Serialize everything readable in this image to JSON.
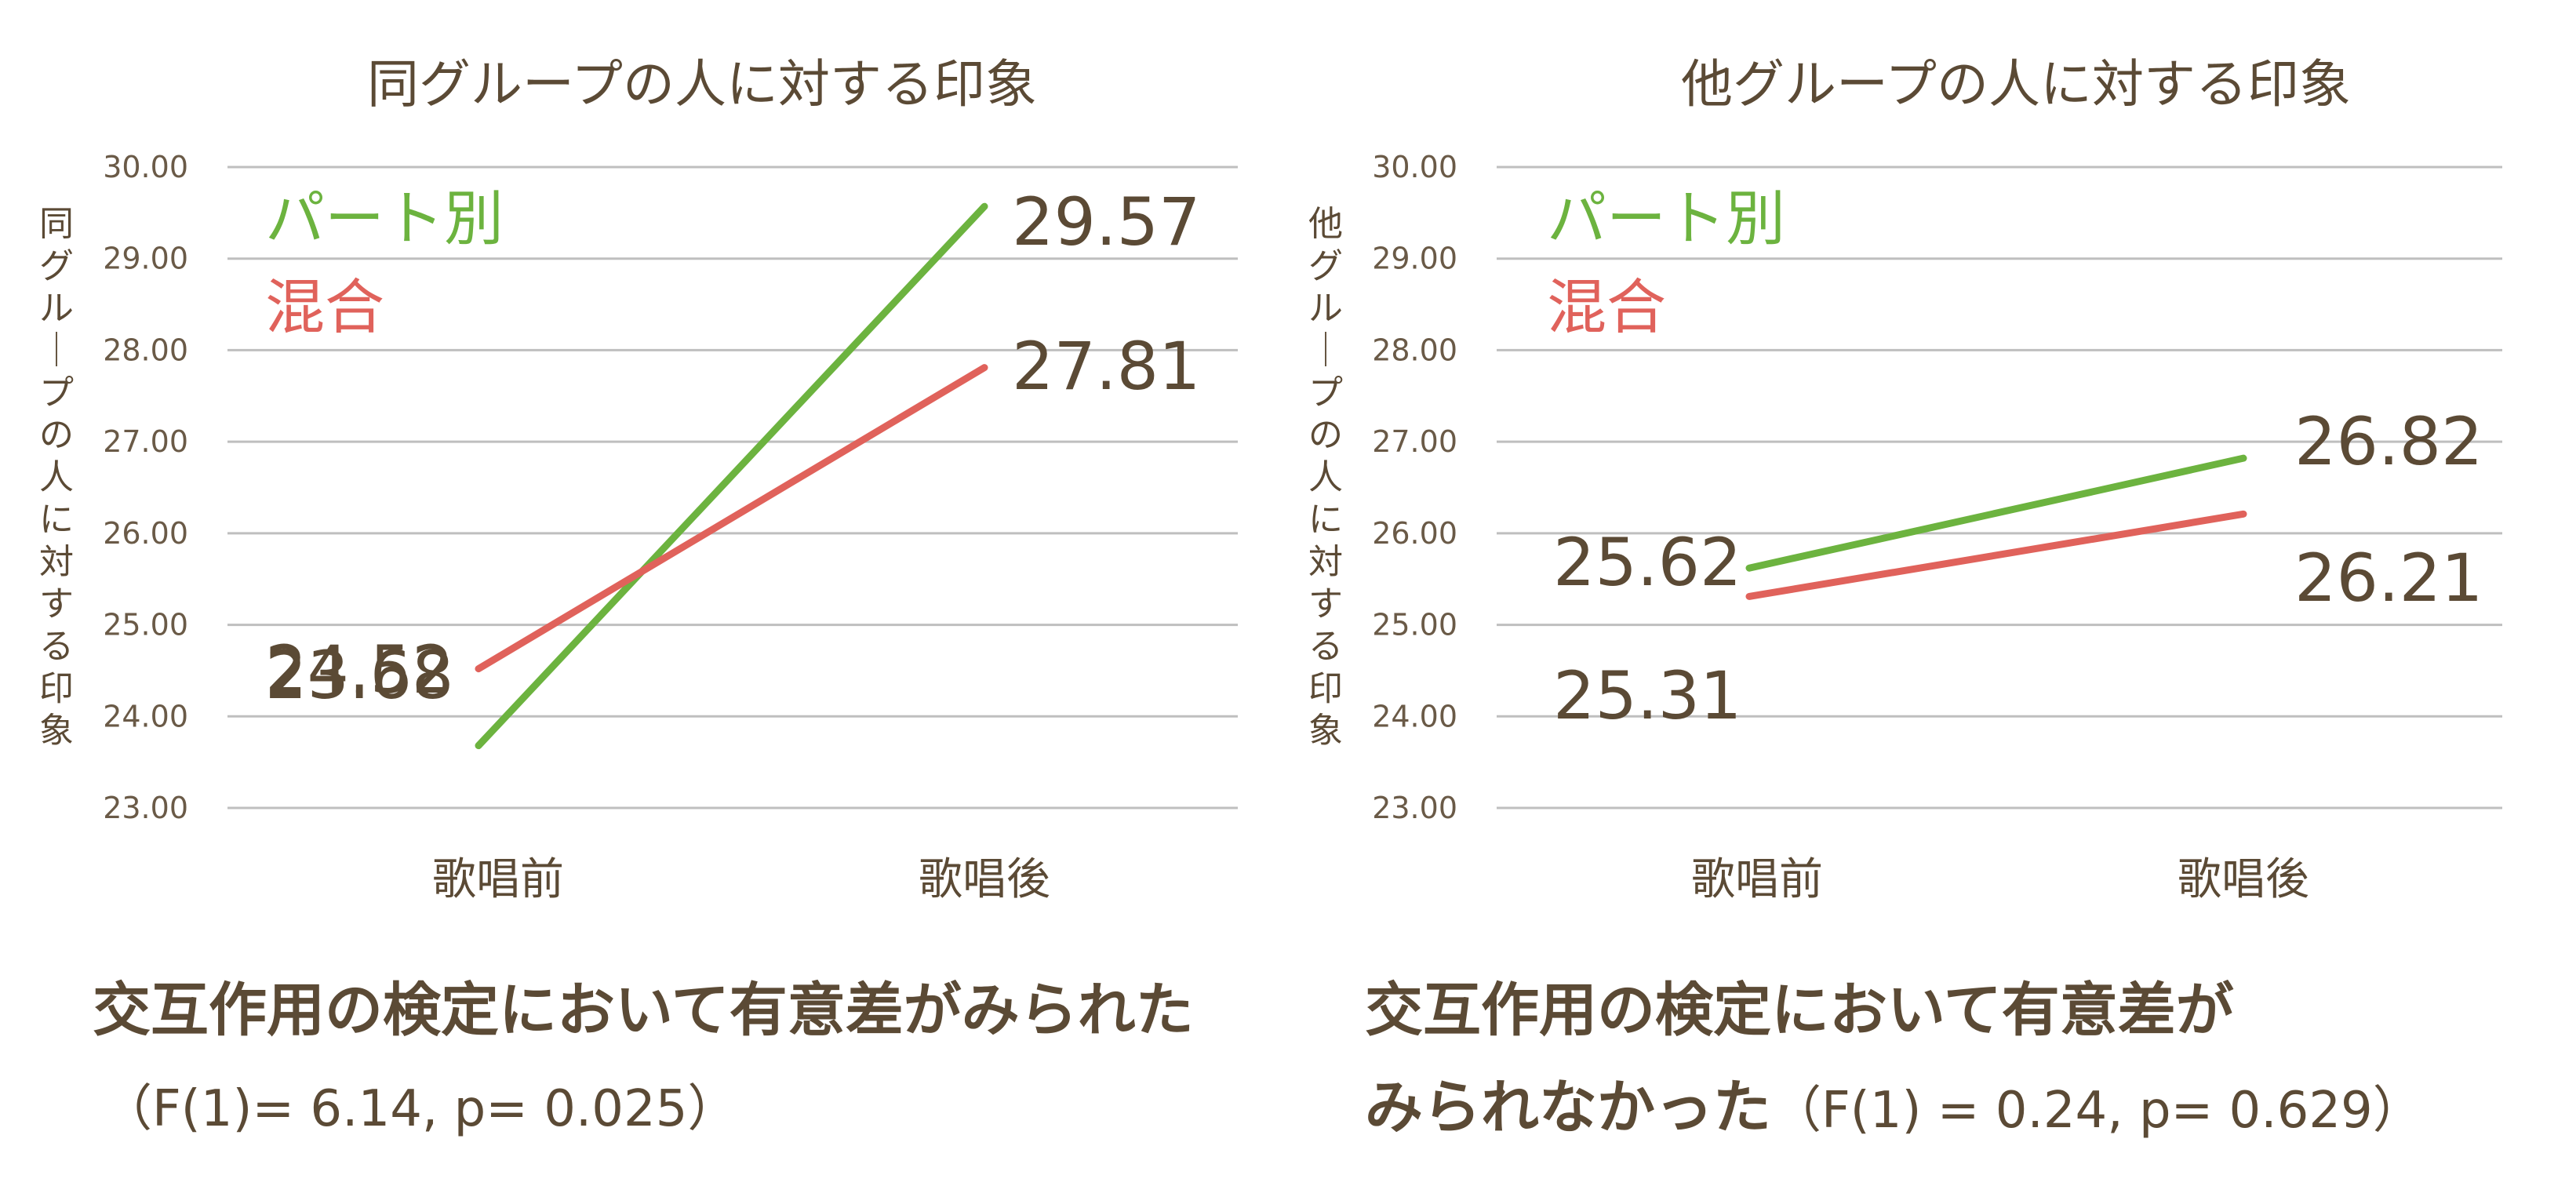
{
  "colors": {
    "part": "#6cb33f",
    "mixed": "#e0625b",
    "text": "#5b4a35",
    "grid": "#bfbfbf"
  },
  "chart_data": [
    {
      "type": "line",
      "title": "同グループの人に対する印象",
      "ylabel": "同グループの人に対する印象",
      "xlabel": "",
      "categories": [
        "歌唱前",
        "歌唱後"
      ],
      "ylim": [
        23,
        30
      ],
      "yticks": [
        "30.00",
        "29.00",
        "28.00",
        "27.00",
        "26.00",
        "25.00",
        "24.00",
        "23.00"
      ],
      "grid": true,
      "legend_position": "top-left",
      "series": [
        {
          "name": "パート別",
          "values": [
            23.68,
            29.57
          ],
          "labels": [
            "23.68",
            "29.57"
          ],
          "color": "#6cb33f"
        },
        {
          "name": "混合",
          "values": [
            24.52,
            27.81
          ],
          "labels": [
            "24.52",
            "27.81"
          ],
          "color": "#e0625b"
        }
      ]
    },
    {
      "type": "line",
      "title": "他グループの人に対する印象",
      "ylabel": "他グループの人に対する印象",
      "xlabel": "",
      "categories": [
        "歌唱前",
        "歌唱後"
      ],
      "ylim": [
        23,
        30
      ],
      "yticks": [
        "30.00",
        "29.00",
        "28.00",
        "27.00",
        "26.00",
        "25.00",
        "24.00",
        "23.00"
      ],
      "grid": true,
      "legend_position": "top-left",
      "series": [
        {
          "name": "パート別",
          "values": [
            25.62,
            26.82
          ],
          "labels": [
            "25.62",
            "26.82"
          ],
          "color": "#6cb33f"
        },
        {
          "name": "混合",
          "values": [
            25.31,
            26.21
          ],
          "labels": [
            "25.31",
            "26.21"
          ],
          "color": "#e0625b"
        }
      ]
    }
  ],
  "notes": {
    "left_main": "交互作用の検定において有意差がみられた",
    "left_stat": "（F(1)= 6.14,   p= 0.025）",
    "right_main_1": "交互作用の検定において有意差が",
    "right_main_2": "みられなかった",
    "right_stat": "（F(1) = 0.24,   p= 0.629）"
  }
}
